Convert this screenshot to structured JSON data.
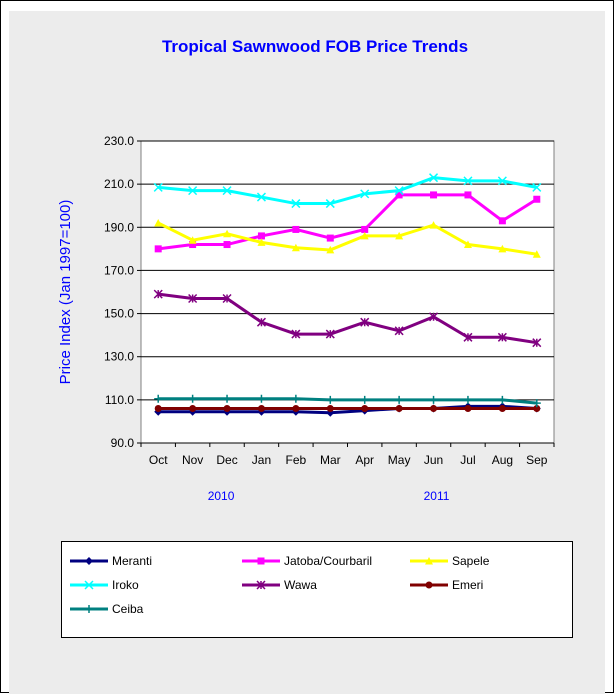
{
  "chart_data": {
    "type": "line",
    "title": "Tropical Sawnwood FOB Price Trends",
    "ylabel": "Price Index  (Jan 1997=100)",
    "xlabel": "",
    "categories": [
      "Oct",
      "Nov",
      "Dec",
      "Jan",
      "Feb",
      "Mar",
      "Apr",
      "May",
      "Jun",
      "Jul",
      "Aug",
      "Sep"
    ],
    "year_labels": [
      "2010",
      "2011"
    ],
    "ylim": [
      90,
      230
    ],
    "yticks": [
      "90.0",
      "110.0",
      "130.0",
      "150.0",
      "170.0",
      "190.0",
      "210.0",
      "230.0"
    ],
    "grid": true,
    "legend_position": "bottom",
    "series": [
      {
        "name": "Meranti",
        "color": "#000080",
        "marker": "diamond",
        "values": [
          104.5,
          104.5,
          104.5,
          104.5,
          104.5,
          104,
          105,
          106,
          106,
          107,
          107,
          106
        ]
      },
      {
        "name": "Jatoba/Courbaril",
        "color": "#ff00ff",
        "marker": "square",
        "values": [
          180,
          182,
          182,
          186,
          189,
          185,
          189,
          205,
          205,
          205,
          193,
          203
        ]
      },
      {
        "name": "Sapele",
        "color": "#ffff00",
        "marker": "triangle",
        "values": [
          192,
          184,
          187,
          183,
          180.5,
          179.5,
          186,
          186,
          191,
          182,
          180,
          177.5
        ]
      },
      {
        "name": "Iroko",
        "color": "#00ffff",
        "marker": "x",
        "values": [
          208.5,
          207,
          207,
          204,
          201,
          201,
          205.5,
          207,
          213,
          211.5,
          211.5,
          208.5
        ]
      },
      {
        "name": "Wawa",
        "color": "#800080",
        "marker": "star",
        "values": [
          159,
          157,
          157,
          146,
          140.5,
          140.5,
          146,
          142,
          148.5,
          139,
          139,
          136.5
        ]
      },
      {
        "name": "Emeri",
        "color": "#800000",
        "marker": "circle",
        "values": [
          106,
          106,
          106,
          106,
          106,
          106,
          106,
          106,
          106,
          106,
          106,
          106
        ]
      },
      {
        "name": "Ceiba",
        "color": "#008080",
        "marker": "plus",
        "values": [
          110.5,
          110.5,
          110.5,
          110.5,
          110.5,
          110,
          110,
          110,
          110,
          110,
          110,
          108.5
        ]
      }
    ]
  }
}
